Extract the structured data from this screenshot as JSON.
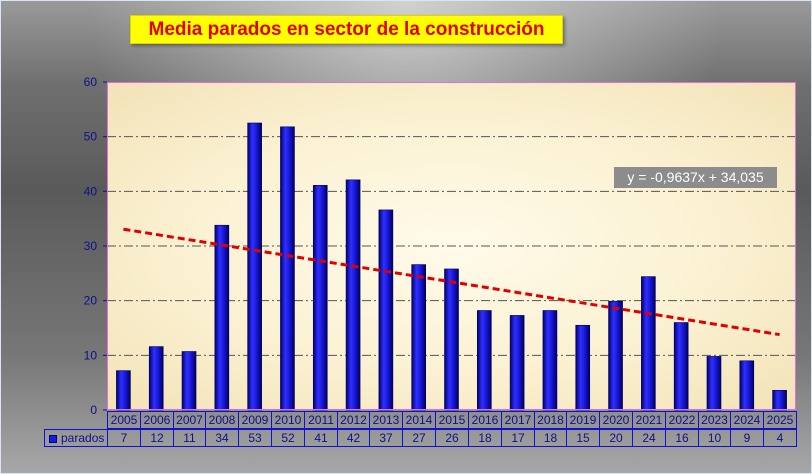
{
  "chart_data": {
    "type": "bar",
    "title": "Media parados  en sector de la construcción",
    "categories": [
      "2005",
      "2006",
      "2007",
      "2008",
      "2009",
      "2010",
      "2011",
      "2012",
      "2013",
      "2014",
      "2015",
      "2016",
      "2017",
      "2018",
      "2019",
      "2020",
      "2021",
      "2022",
      "2023",
      "2024",
      "2025"
    ],
    "series": [
      {
        "name": "parados",
        "values": [
          7.2,
          11.6,
          10.7,
          33.8,
          52.5,
          51.8,
          41.1,
          42.1,
          36.6,
          26.6,
          25.8,
          18.2,
          17.3,
          18.2,
          15.5,
          19.9,
          24.4,
          16.0,
          9.8,
          9.0,
          3.6
        ],
        "table_values": [
          "7",
          "12",
          "11",
          "34",
          "53",
          "52",
          "41",
          "42",
          "37",
          "27",
          "26",
          "18",
          "17",
          "18",
          "15",
          "20",
          "24",
          "16",
          "10",
          "9",
          "4"
        ],
        "color": "#1a1ae0"
      }
    ],
    "trendline": {
      "type": "linear",
      "slope": -0.9637,
      "intercept": 34.035,
      "label": "y = -0,9637x + 34,035",
      "color": "#e00000"
    },
    "ylim": [
      0,
      60
    ],
    "yticks": [
      0,
      10,
      20,
      30,
      40,
      50,
      60
    ],
    "grid": true,
    "legend": "data-table",
    "colors": {
      "title_bg": "#ffff00",
      "title_text": "#e00000",
      "table_text": "#10108a",
      "grid": "#555555"
    }
  }
}
